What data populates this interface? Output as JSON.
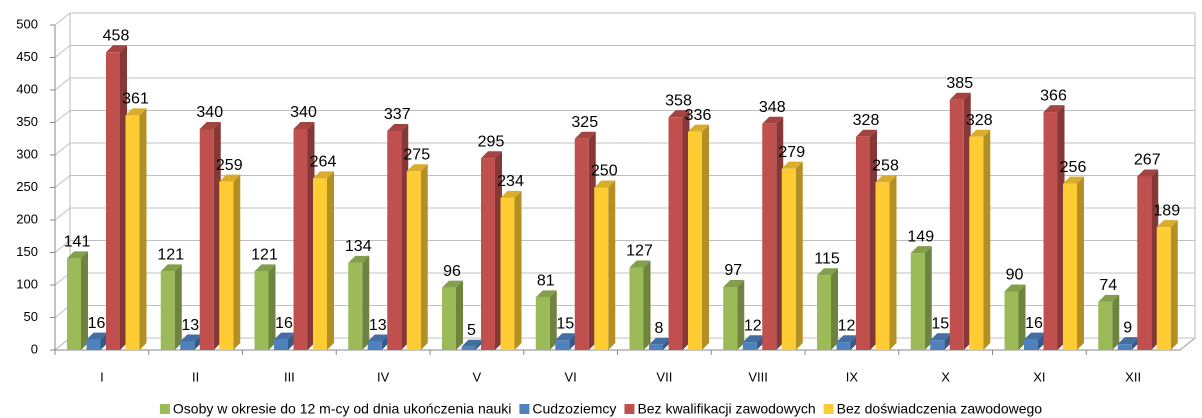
{
  "chart_data": {
    "type": "bar3d",
    "categories": [
      "I",
      "II",
      "III",
      "IV",
      "V",
      "VI",
      "VII",
      "VIII",
      "IX",
      "X",
      "XI",
      "XII"
    ],
    "series": [
      {
        "name": "Osoby w okresie do 12 m-cy od dnia ukończenia nauki",
        "color": "#9bbb59",
        "values": [
          141,
          121,
          121,
          134,
          96,
          81,
          127,
          97,
          115,
          149,
          90,
          74
        ]
      },
      {
        "name": "Cudzoziemcy",
        "color": "#4f81bd",
        "values": [
          16,
          13,
          16,
          13,
          5,
          15,
          8,
          12,
          12,
          15,
          16,
          9
        ]
      },
      {
        "name": "Bez kwalifikacji zawodowych",
        "color": "#c0504d",
        "values": [
          458,
          340,
          340,
          337,
          295,
          325,
          358,
          348,
          328,
          385,
          366,
          267
        ]
      },
      {
        "name": "Bez doświadczenia zawodowego",
        "color": "#ffcc33",
        "values": [
          361,
          259,
          264,
          275,
          234,
          250,
          336,
          279,
          258,
          328,
          256,
          189
        ]
      }
    ],
    "ylim": [
      0,
      500
    ],
    "yticks": [
      0,
      50,
      100,
      150,
      200,
      250,
      300,
      350,
      400,
      450,
      500
    ],
    "grid": true,
    "legend": "bottom"
  }
}
